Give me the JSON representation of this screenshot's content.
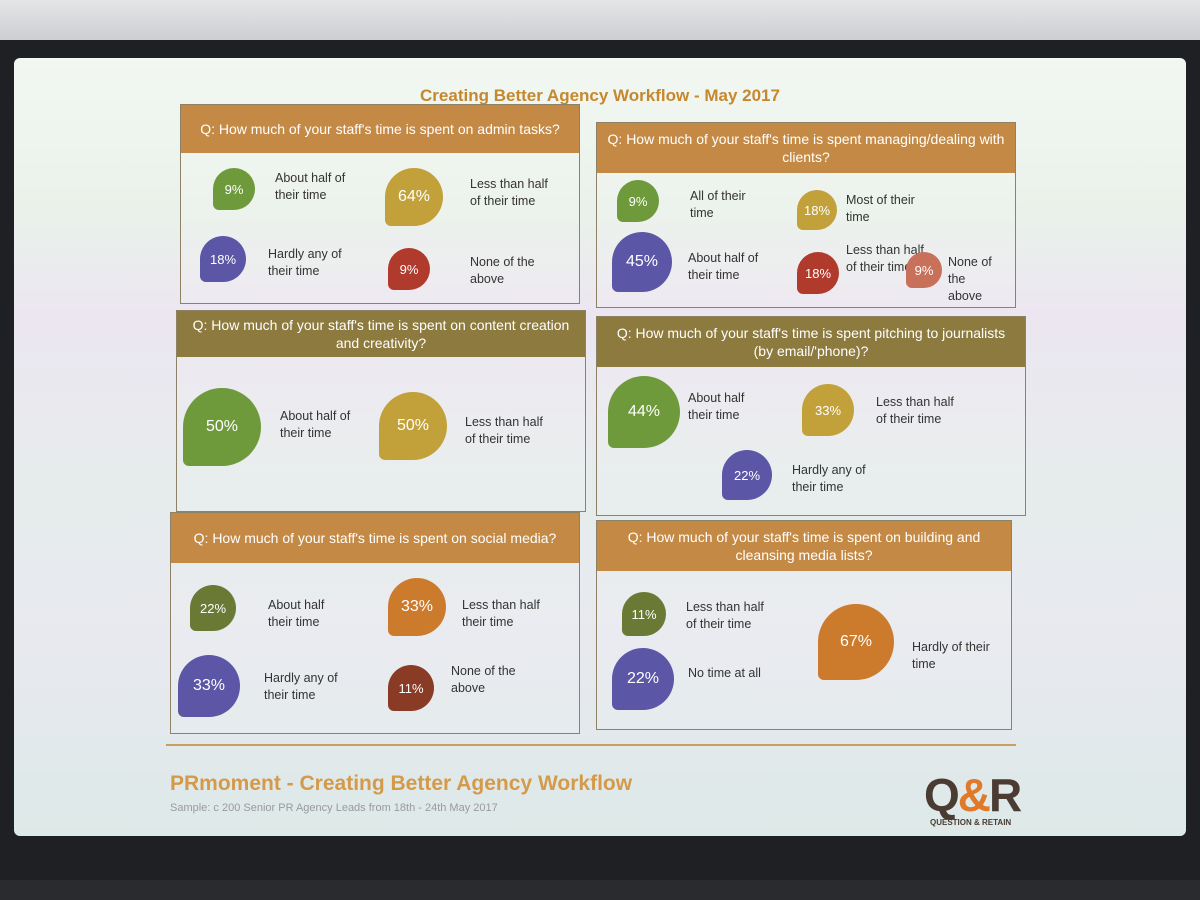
{
  "slide_title": "Creating Better Agency Workflow - May 2017",
  "footer": {
    "title": "PRmoment - Creating Better Agency Workflow",
    "sample": "Sample: c 200 Senior PR Agency Leads from 18th - 24th May 2017"
  },
  "logo": {
    "main_left": "Q",
    "main_amp": "&",
    "main_right": "R",
    "sub": "QUESTION & RETAIN"
  },
  "colors": {
    "green": "#6e9a3c",
    "mustard": "#c2a13a",
    "purple": "#5b56a6",
    "red": "#b03a2c",
    "orange": "#cc7a2c",
    "brown": "#8a3b26",
    "olive": "#6a7a35",
    "salmon": "#c9705a",
    "header_orange": "#c48a45",
    "header_olive": "#8d7a3e"
  },
  "panels": [
    {
      "question": "Q: How much of your staff's time is spent on admin tasks?",
      "header_color": "#c48a45",
      "items": [
        {
          "value": "9%",
          "label": "About half of their time",
          "color": "#6e9a3c"
        },
        {
          "value": "64%",
          "label": "Less than half of their time",
          "color": "#c2a13a"
        },
        {
          "value": "18%",
          "label": "Hardly any of their time",
          "color": "#5b56a6"
        },
        {
          "value": "9%",
          "label": "None of the above",
          "color": "#b03a2c"
        }
      ]
    },
    {
      "question": "Q: How much of your staff's time is spent managing/dealing with clients?",
      "header_color": "#c48a45",
      "items": [
        {
          "value": "9%",
          "label": "All of their time",
          "color": "#6e9a3c"
        },
        {
          "value": "18%",
          "label": "Most of their time",
          "color": "#c2a13a"
        },
        {
          "value": "45%",
          "label": "About half of their time",
          "color": "#5b56a6"
        },
        {
          "value": "18%",
          "label": "Less than half of their time",
          "color": "#b03a2c"
        },
        {
          "value": "9%",
          "label": "None of the above",
          "color": "#c9705a"
        }
      ]
    },
    {
      "question": "Q: How much of your staff's time is spent on content creation and creativity?",
      "header_color": "#8d7a3e",
      "items": [
        {
          "value": "50%",
          "label": "About half of their time",
          "color": "#6e9a3c"
        },
        {
          "value": "50%",
          "label": "Less than half of their time",
          "color": "#c2a13a"
        }
      ]
    },
    {
      "question": "Q: How much of your staff's time is spent pitching to journalists (by email/'phone)?",
      "header_color": "#8d7a3e",
      "items": [
        {
          "value": "44%",
          "label": "About half their time",
          "color": "#6e9a3c"
        },
        {
          "value": "33%",
          "label": "Less than half of their time",
          "color": "#c2a13a"
        },
        {
          "value": "22%",
          "label": "Hardly any of their time",
          "color": "#5b56a6"
        }
      ]
    },
    {
      "question": "Q: How much of your staff's time is spent on social media?",
      "header_color": "#c48a45",
      "items": [
        {
          "value": "22%",
          "label": "About half their time",
          "color": "#6a7a35"
        },
        {
          "value": "33%",
          "label": "Less than half their time",
          "color": "#cc7a2c"
        },
        {
          "value": "33%",
          "label": "Hardly any of their time",
          "color": "#5b56a6"
        },
        {
          "value": "11%",
          "label": "None of the above",
          "color": "#8a3b26"
        }
      ]
    },
    {
      "question": "Q: How much of your staff's time is spent on building and cleansing media lists?",
      "header_color": "#c48a45",
      "items": [
        {
          "value": "11%",
          "label": "Less than half of their time",
          "color": "#6a7a35"
        },
        {
          "value": "22%",
          "label": "No time at all",
          "color": "#5b56a6"
        },
        {
          "value": "67%",
          "label": "Hardly of their time",
          "color": "#cc7a2c"
        }
      ]
    }
  ],
  "chart_data": [
    {
      "type": "bubble",
      "title": "Q: How much of your staff's time is spent on admin tasks?",
      "categories": [
        "About half of their time",
        "Less than half of their time",
        "Hardly any of their time",
        "None of the above"
      ],
      "values": [
        9,
        64,
        18,
        9
      ]
    },
    {
      "type": "bubble",
      "title": "Q: How much of your staff's time is spent managing/dealing with clients?",
      "categories": [
        "All of their time",
        "Most of their time",
        "About half of their time",
        "Less than half of their time",
        "None of the above"
      ],
      "values": [
        9,
        18,
        45,
        18,
        9
      ]
    },
    {
      "type": "bubble",
      "title": "Q: How much of your staff's time is spent on content creation and creativity?",
      "categories": [
        "About half of their time",
        "Less than half of their time"
      ],
      "values": [
        50,
        50
      ]
    },
    {
      "type": "bubble",
      "title": "Q: How much of your staff's time is spent pitching to journalists (by email/'phone)?",
      "categories": [
        "About half their time",
        "Less than half of their time",
        "Hardly any of their time"
      ],
      "values": [
        44,
        33,
        22
      ]
    },
    {
      "type": "bubble",
      "title": "Q: How much of your staff's time is spent on social media?",
      "categories": [
        "About half their time",
        "Less than half their time",
        "Hardly any of their time",
        "None of the above"
      ],
      "values": [
        22,
        33,
        33,
        11
      ]
    },
    {
      "type": "bubble",
      "title": "Q: How much of your staff's time is spent on building and cleansing media lists?",
      "categories": [
        "Less than half of their time",
        "No time at all",
        "Hardly of their time"
      ],
      "values": [
        11,
        22,
        67
      ]
    }
  ]
}
